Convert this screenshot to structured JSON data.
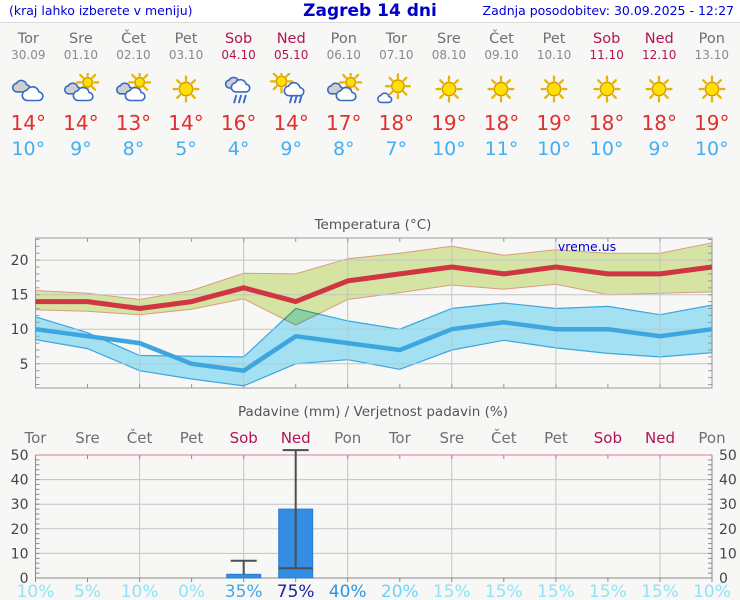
{
  "header": {
    "menu_hint": "(kraj lahko izberete v meniju)",
    "title": "Zagreb 14 dni",
    "updated": "Zadnja posodobitev: 30.09.2025 - 12:27"
  },
  "forecast": {
    "days": [
      {
        "name": "Tor",
        "date": "30.09",
        "weekend": false,
        "icon": "cloudy",
        "high": "14°",
        "low": "10°"
      },
      {
        "name": "Sre",
        "date": "01.10",
        "weekend": false,
        "icon": "partly-cloudy",
        "high": "14°",
        "low": "9°"
      },
      {
        "name": "Čet",
        "date": "02.10",
        "weekend": false,
        "icon": "partly-cloudy",
        "high": "13°",
        "low": "8°"
      },
      {
        "name": "Pet",
        "date": "03.10",
        "weekend": false,
        "icon": "sunny",
        "high": "14°",
        "low": "5°"
      },
      {
        "name": "Sob",
        "date": "04.10",
        "weekend": true,
        "icon": "rain",
        "high": "16°",
        "low": "4°"
      },
      {
        "name": "Ned",
        "date": "05.10",
        "weekend": true,
        "icon": "sun-rain",
        "high": "14°",
        "low": "9°"
      },
      {
        "name": "Pon",
        "date": "06.10",
        "weekend": false,
        "icon": "partly-cloudy",
        "high": "17°",
        "low": "8°"
      },
      {
        "name": "Tor",
        "date": "07.10",
        "weekend": false,
        "icon": "mostly-sunny",
        "high": "18°",
        "low": "7°"
      },
      {
        "name": "Sre",
        "date": "08.10",
        "weekend": false,
        "icon": "sunny",
        "high": "19°",
        "low": "10°"
      },
      {
        "name": "Čet",
        "date": "09.10",
        "weekend": false,
        "icon": "sunny",
        "high": "18°",
        "low": "11°"
      },
      {
        "name": "Pet",
        "date": "10.10",
        "weekend": false,
        "icon": "sunny",
        "high": "19°",
        "low": "10°"
      },
      {
        "name": "Sob",
        "date": "11.10",
        "weekend": true,
        "icon": "sunny",
        "high": "18°",
        "low": "10°"
      },
      {
        "name": "Ned",
        "date": "12.10",
        "weekend": true,
        "icon": "sunny",
        "high": "18°",
        "low": "9°"
      },
      {
        "name": "Pon",
        "date": "13.10",
        "weekend": false,
        "icon": "sunny",
        "high": "19°",
        "low": "10°"
      }
    ]
  },
  "chart_data": [
    {
      "type": "line",
      "title": "Temperatura (°C)",
      "watermark": "vreme.us",
      "categories": [
        "Tor 30.09",
        "Sre 01.10",
        "Čet 02.10",
        "Pet 03.10",
        "Sob 04.10",
        "Ned 05.10",
        "Pon 06.10",
        "Tor 07.10",
        "Sre 08.10",
        "Čet 09.10",
        "Pet 10.10",
        "Sob 11.10",
        "Ned 12.10",
        "Pon 13.10"
      ],
      "ylim": [
        1.5,
        23.2
      ],
      "yticks": [
        5,
        10,
        15,
        20
      ],
      "grid": true,
      "series": [
        {
          "name": "max_temp",
          "color": "#cf3642",
          "values": [
            14,
            14,
            13,
            14,
            16,
            14,
            17,
            18,
            19,
            18,
            19,
            18,
            18,
            19
          ]
        },
        {
          "name": "max_temp_range",
          "kind": "band",
          "fill": "#dcecaa",
          "edge": "#e2a183",
          "upper": [
            15.6,
            15.2,
            14.3,
            15.6,
            18.1,
            18.0,
            20.2,
            21.0,
            22.0,
            20.7,
            21.5,
            21.0,
            21.0,
            22.5
          ],
          "lower": [
            12.8,
            12.6,
            12.1,
            12.9,
            14.4,
            10.6,
            14.3,
            15.3,
            16.4,
            15.8,
            16.5,
            15.0,
            15.2,
            15.4
          ]
        },
        {
          "name": "min_temp",
          "color": "#3da5e0",
          "values": [
            10,
            9,
            8,
            5,
            4,
            9,
            8,
            7,
            10,
            11,
            10,
            10,
            9,
            10
          ]
        },
        {
          "name": "min_temp_range",
          "kind": "band",
          "fill": "#a2e0f2",
          "edge": "#3da5e0",
          "upper": [
            11.8,
            9.5,
            6.2,
            6.1,
            6.0,
            13.0,
            11.2,
            10.0,
            13.0,
            13.8,
            13.0,
            13.3,
            12.1,
            13.5
          ],
          "lower": [
            8.5,
            7.2,
            4.0,
            2.8,
            1.8,
            5.0,
            5.6,
            4.2,
            7.0,
            8.4,
            7.3,
            6.5,
            6.0,
            6.6
          ]
        }
      ]
    },
    {
      "type": "bar",
      "title": "Padavine (mm) / Verjetnost padavin (%)",
      "categories": [
        "Tor",
        "Sre",
        "Čet",
        "Pet",
        "Sob",
        "Ned",
        "Pon",
        "Tor",
        "Sre",
        "Čet",
        "Pet",
        "Sob",
        "Ned",
        "Pon"
      ],
      "weekend": [
        false,
        false,
        false,
        false,
        true,
        true,
        false,
        false,
        false,
        false,
        false,
        true,
        true,
        false
      ],
      "values": [
        0,
        0,
        0,
        0,
        1.5,
        28,
        0,
        0,
        0,
        0,
        0,
        0,
        0,
        0
      ],
      "whiskers": [
        {
          "day": 5,
          "low": 1.5,
          "high": 7,
          "low_cap": false
        },
        {
          "day": 6,
          "low": 4,
          "high": 52,
          "low_cap": true
        }
      ],
      "probabilities": [
        {
          "label": "10%",
          "color": "#8fe3f7"
        },
        {
          "label": "5%",
          "color": "#8fe3f7"
        },
        {
          "label": "10%",
          "color": "#8fe3f7"
        },
        {
          "label": "0%",
          "color": "#8fe3f7"
        },
        {
          "label": "35%",
          "color": "#41a7e5"
        },
        {
          "label": "75%",
          "color": "#1c22a0"
        },
        {
          "label": "40%",
          "color": "#3093dd"
        },
        {
          "label": "20%",
          "color": "#6fd4f4"
        },
        {
          "label": "15%",
          "color": "#8fe3f7"
        },
        {
          "label": "15%",
          "color": "#8fe3f7"
        },
        {
          "label": "15%",
          "color": "#8fe3f7"
        },
        {
          "label": "15%",
          "color": "#8fe3f7"
        },
        {
          "label": "15%",
          "color": "#8fe3f7"
        },
        {
          "label": "10%",
          "color": "#8fe3f7"
        }
      ],
      "ylim": [
        0,
        50
      ],
      "yticks": [
        0,
        10,
        20,
        30,
        40,
        50
      ],
      "bar_color": "#338ee3"
    }
  ],
  "colors": {
    "header_blue": "#0000d5",
    "weekend": "#b01357",
    "day_gray": "#6f6f6f",
    "high_red": "#e12f2f",
    "low_blue": "#45aef2",
    "grid": "#c4c4c4",
    "axis": "#999999",
    "precip_top_axis": "#e493ad",
    "chart_title": "#555555",
    "tick_label": "#444444",
    "whisker": "#4d4d4d",
    "watermark_blue": "#0000cc"
  }
}
